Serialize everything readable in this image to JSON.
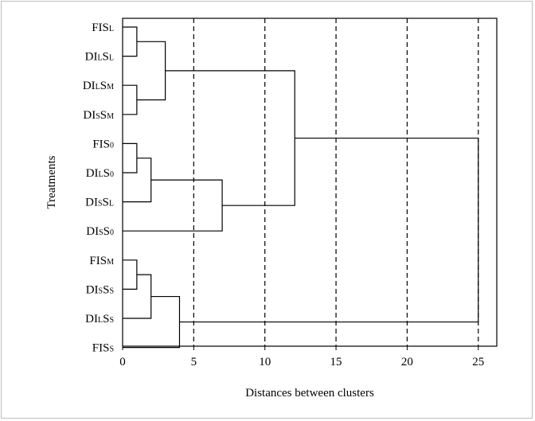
{
  "chart_data": {
    "type": "dendrogram",
    "xlabel": "Distances between clusters",
    "ylabel": "Treatments",
    "xlim": [
      0,
      26.3
    ],
    "xticks": [
      0,
      5,
      10,
      15,
      20,
      25
    ],
    "dashed_reference_lines": [
      5,
      10,
      15,
      20,
      25
    ],
    "grid": false,
    "leaves": [
      {
        "base": "FIS",
        "sub": "L"
      },
      {
        "base": "DI",
        "sub": "L",
        "base2": "S",
        "sub2": "L"
      },
      {
        "base": "DI",
        "sub": "L",
        "base2": "S",
        "sub2": "M"
      },
      {
        "base": "DI",
        "sub": "S",
        "base2": "S",
        "sub2": "M"
      },
      {
        "base": "FIS",
        "sub": "0"
      },
      {
        "base": "DI",
        "sub": "L",
        "base2": "S",
        "sub2": "0"
      },
      {
        "base": "DI",
        "sub": "S",
        "base2": "S",
        "sub2": "L"
      },
      {
        "base": "DI",
        "sub": "S",
        "base2": "S",
        "sub2": "0"
      },
      {
        "base": "FIS",
        "sub": "M"
      },
      {
        "base": "DI",
        "sub": "S",
        "base2": "S",
        "sub2": "S"
      },
      {
        "base": "DI",
        "sub": "L",
        "base2": "S",
        "sub2": "S"
      },
      {
        "base": "FIS",
        "sub": "S"
      }
    ],
    "merges": [
      {
        "a": {
          "leaf": 0
        },
        "b": {
          "leaf": 1
        },
        "distance": 1.0
      },
      {
        "a": {
          "leaf": 2
        },
        "b": {
          "leaf": 3
        },
        "distance": 1.0
      },
      {
        "a": {
          "node": 0
        },
        "b": {
          "node": 1
        },
        "distance": 3.0
      },
      {
        "a": {
          "leaf": 4
        },
        "b": {
          "leaf": 5
        },
        "distance": 1.0
      },
      {
        "a": {
          "node": 3
        },
        "b": {
          "leaf": 6
        },
        "distance": 2.0
      },
      {
        "a": {
          "node": 4
        },
        "b": {
          "leaf": 7
        },
        "distance": 7.0
      },
      {
        "a": {
          "node": 2
        },
        "b": {
          "node": 5
        },
        "distance": 12.1
      },
      {
        "a": {
          "leaf": 8
        },
        "b": {
          "leaf": 9
        },
        "distance": 1.0
      },
      {
        "a": {
          "node": 7
        },
        "b": {
          "leaf": 10
        },
        "distance": 2.0
      },
      {
        "a": {
          "node": 8
        },
        "b": {
          "leaf": 11
        },
        "distance": 4.0
      },
      {
        "a": {
          "node": 6
        },
        "b": {
          "node": 9
        },
        "distance": 25.0
      }
    ]
  }
}
